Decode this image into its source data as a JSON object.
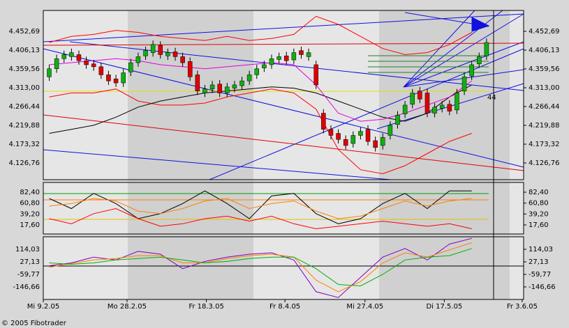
{
  "footer": "© 2005 Fibotrader",
  "chart_data": [
    {
      "type": "candlestick",
      "x": [
        0,
        1,
        2,
        3,
        4,
        5,
        6,
        7,
        8,
        9,
        10,
        11,
        12,
        13,
        14,
        15,
        16,
        17,
        18,
        19,
        20,
        21,
        22,
        23,
        24,
        25,
        26,
        27,
        28,
        29,
        30,
        31,
        32,
        33,
        34,
        35,
        36,
        37,
        38,
        39,
        40,
        41,
        42,
        43,
        44,
        45,
        46,
        47,
        48,
        49,
        50,
        51,
        52,
        53,
        54,
        55,
        56,
        57,
        58,
        59
      ],
      "open": [
        4340,
        4360,
        4385,
        4390,
        4395,
        4380,
        4372,
        4365,
        4345,
        4335,
        4325,
        4352,
        4375,
        4392,
        4400,
        4418,
        4392,
        4402,
        4390,
        4378,
        4345,
        4300,
        4310,
        4322,
        4300,
        4312,
        4318,
        4330,
        4345,
        4362,
        4370,
        4383,
        4392,
        4382,
        4405,
        4390,
        4370,
        4250,
        4210,
        4200,
        4185,
        4175,
        4195,
        4210,
        4182,
        4170,
        4195,
        4222,
        4248,
        4272,
        4305,
        4300,
        4250,
        4262,
        4272,
        4258,
        4305,
        4342,
        4372,
        4392
      ],
      "high": [
        4370,
        4395,
        4405,
        4410,
        4405,
        4390,
        4382,
        4375,
        4355,
        4345,
        4360,
        4385,
        4400,
        4415,
        4430,
        4428,
        4410,
        4412,
        4400,
        4388,
        4355,
        4320,
        4330,
        4332,
        4325,
        4330,
        4340,
        4355,
        4370,
        4380,
        4395,
        4400,
        4402,
        4410,
        4415,
        4410,
        4380,
        4260,
        4220,
        4210,
        4195,
        4205,
        4215,
        4220,
        4192,
        4200,
        4230,
        4255,
        4280,
        4310,
        4315,
        4310,
        4275,
        4280,
        4282,
        4310,
        4350,
        4380,
        4400,
        4435
      ],
      "low": [
        4330,
        4350,
        4375,
        4380,
        4370,
        4360,
        4355,
        4335,
        4320,
        4315,
        4315,
        4342,
        4365,
        4382,
        4390,
        4385,
        4382,
        4380,
        4365,
        4330,
        4295,
        4290,
        4300,
        4290,
        4290,
        4302,
        4308,
        4320,
        4335,
        4352,
        4360,
        4373,
        4370,
        4372,
        4385,
        4380,
        4310,
        4200,
        4185,
        4175,
        4160,
        4165,
        4185,
        4170,
        4155,
        4160,
        4185,
        4212,
        4238,
        4262,
        4275,
        4240,
        4240,
        4252,
        4245,
        4248,
        4295,
        4332,
        4362,
        4382
      ],
      "close": [
        4360,
        4385,
        4395,
        4400,
        4380,
        4370,
        4365,
        4345,
        4330,
        4325,
        4350,
        4375,
        4390,
        4405,
        4420,
        4395,
        4400,
        4390,
        4375,
        4340,
        4305,
        4310,
        4320,
        4300,
        4315,
        4320,
        4330,
        4345,
        4360,
        4370,
        4385,
        4390,
        4380,
        4400,
        4395,
        4400,
        4320,
        4210,
        4195,
        4185,
        4170,
        4195,
        4205,
        4180,
        4165,
        4190,
        4220,
        4245,
        4270,
        4300,
        4285,
        4250,
        4265,
        4270,
        4255,
        4300,
        4340,
        4370,
        4390,
        4425
      ],
      "up_color": "#10b010",
      "down_color": "#e00000",
      "series": [
        {
          "color": "#ff0000",
          "x": [
            0,
            3,
            6,
            9,
            12,
            15,
            18,
            21,
            24,
            27,
            30,
            33,
            36,
            39,
            42,
            45,
            48,
            51,
            54,
            57
          ],
          "values": [
            4425,
            4440,
            4445,
            4455,
            4450,
            4440,
            4435,
            4430,
            4440,
            4430,
            4435,
            4445,
            4490,
            4470,
            4440,
            4410,
            4395,
            4400,
            4420,
            4450
          ]
        },
        {
          "color": "#ff0000",
          "x": [
            0,
            3,
            6,
            9,
            12,
            15,
            18,
            21,
            24,
            27,
            30,
            33,
            36,
            39,
            42,
            45,
            48,
            51,
            54,
            57
          ],
          "values": [
            4290,
            4300,
            4300,
            4310,
            4280,
            4270,
            4270,
            4275,
            4290,
            4300,
            4310,
            4300,
            4260,
            4160,
            4110,
            4100,
            4120,
            4150,
            4180,
            4200
          ]
        },
        {
          "color": "#000000",
          "x": [
            0,
            3,
            6,
            9,
            12,
            15,
            18,
            21,
            24,
            27,
            30,
            33,
            36,
            39,
            42,
            45,
            48,
            51,
            54,
            57
          ],
          "values": [
            4200,
            4210,
            4220,
            4240,
            4265,
            4280,
            4290,
            4300,
            4305,
            4310,
            4315,
            4312,
            4300,
            4280,
            4260,
            4240,
            4230,
            4250,
            4290,
            4320
          ]
        },
        {
          "color": "#e000e0",
          "x": [
            0,
            3,
            6,
            9,
            12,
            15,
            18,
            21,
            24,
            27,
            30,
            33,
            36,
            39,
            42,
            45,
            48,
            51,
            54,
            57
          ],
          "values": [
            4370,
            4375,
            4380,
            4385,
            4380,
            4370,
            4365,
            4360,
            4365,
            4370,
            4375,
            4370,
            4320,
            4250,
            4230,
            4235,
            4250,
            4270,
            4290,
            4330
          ]
        }
      ],
      "annotation": "44",
      "xlim": [
        -0.8,
        64
      ],
      "ylim": [
        4085.4,
        4504.4
      ],
      "yticks": [
        {
          "value": 4452.69,
          "label": "4.452,69"
        },
        {
          "value": 4406.13,
          "label": "4.406,13"
        },
        {
          "value": 4359.56,
          "label": "4.359,56"
        },
        {
          "value": 4313.0,
          "label": "4.313,00"
        },
        {
          "value": 4266.44,
          "label": "4.266,44"
        },
        {
          "value": 4219.88,
          "label": "4.219,88"
        },
        {
          "value": 4173.32,
          "label": "4.173,32"
        },
        {
          "value": 4126.76,
          "label": "4.126,76"
        }
      ]
    },
    {
      "type": "line",
      "series": [
        {
          "color": "#000000",
          "x": [
            0,
            3,
            6,
            9,
            12,
            15,
            18,
            21,
            24,
            27,
            30,
            33,
            36,
            39,
            42,
            45,
            48,
            51,
            54,
            57
          ],
          "values": [
            70,
            50,
            80,
            60,
            30,
            40,
            60,
            85,
            60,
            30,
            75,
            80,
            40,
            20,
            30,
            60,
            80,
            50,
            85,
            85
          ]
        },
        {
          "color": "#ff8000",
          "x": [
            0,
            3,
            6,
            9,
            12,
            15,
            18,
            21,
            24,
            27,
            30,
            33,
            36,
            39,
            42,
            45,
            48,
            51,
            54,
            57
          ],
          "values": [
            55,
            60,
            70,
            65,
            45,
            40,
            50,
            65,
            70,
            50,
            60,
            65,
            45,
            30,
            35,
            50,
            65,
            55,
            65,
            70
          ]
        },
        {
          "color": "#ff0000",
          "x": [
            0,
            3,
            6,
            9,
            12,
            15,
            18,
            21,
            24,
            27,
            30,
            33,
            36,
            39,
            42,
            45,
            48,
            51,
            54,
            57
          ],
          "values": [
            30,
            20,
            40,
            50,
            30,
            15,
            20,
            30,
            35,
            25,
            35,
            20,
            10,
            15,
            20,
            25,
            20,
            15,
            20,
            10
          ]
        }
      ],
      "xlim": [
        -0.8,
        64
      ],
      "ylim": [
        -0.3,
        101.7
      ],
      "yticks": [
        {
          "value": 82.4,
          "label": "82,40"
        },
        {
          "value": 60.8,
          "label": "60,80"
        },
        {
          "value": 39.2,
          "label": "39,20"
        },
        {
          "value": 17.6,
          "label": "17,60"
        }
      ]
    },
    {
      "type": "line",
      "series": [
        {
          "color": "#8000c0",
          "x": [
            0,
            3,
            6,
            9,
            12,
            15,
            18,
            21,
            24,
            27,
            30,
            33,
            36,
            39,
            42,
            45,
            48,
            51,
            54,
            57
          ],
          "values": [
            0,
            20,
            60,
            40,
            100,
            80,
            -20,
            30,
            60,
            80,
            90,
            40,
            -180,
            -220,
            -80,
            60,
            120,
            40,
            150,
            190
          ]
        },
        {
          "color": "#ff8000",
          "x": [
            0,
            3,
            6,
            9,
            12,
            15,
            18,
            21,
            24,
            27,
            30,
            33,
            36,
            39,
            42,
            45,
            48,
            51,
            54,
            57
          ],
          "values": [
            -10,
            15,
            40,
            50,
            70,
            70,
            20,
            20,
            50,
            70,
            80,
            60,
            -100,
            -180,
            -110,
            20,
            90,
            60,
            110,
            160
          ]
        },
        {
          "color": "#00b000",
          "x": [
            0,
            3,
            6,
            9,
            12,
            15,
            18,
            21,
            24,
            27,
            30,
            33,
            36,
            39,
            42,
            45,
            48,
            51,
            54,
            57
          ],
          "values": [
            20,
            10,
            20,
            40,
            50,
            60,
            40,
            20,
            30,
            50,
            60,
            60,
            -20,
            -130,
            -140,
            -60,
            40,
            60,
            70,
            120
          ]
        }
      ],
      "xlim": [
        -0.8,
        64
      ],
      "ylim": [
        -233.56,
        200.93
      ],
      "yticks": [
        {
          "value": 114.03,
          "label": "114,03"
        },
        {
          "value": 27.13,
          "label": "27,13"
        },
        {
          "value": -59.77,
          "label": "-59,77"
        },
        {
          "value": -146.66,
          "label": "-146,66"
        }
      ],
      "xticks": [
        {
          "value": -0.8,
          "label": "Mi 9.2.05"
        },
        {
          "value": 10.5,
          "label": "Mo 28.2.05"
        },
        {
          "value": 21.2,
          "label": "Fr 18.3.05"
        },
        {
          "value": 31.8,
          "label": "Fr 8.4.05"
        },
        {
          "value": 42.6,
          "label": "Mi 27.4.05"
        },
        {
          "value": 53.3,
          "label": "Di 17.5.05"
        },
        {
          "value": 63.8,
          "label": "Fr 3.6.05"
        }
      ]
    }
  ]
}
